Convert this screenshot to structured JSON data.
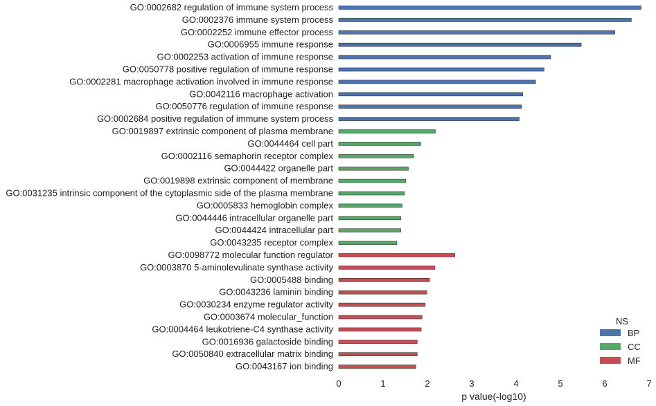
{
  "chart_data": {
    "type": "bar",
    "orientation": "horizontal",
    "xlabel": "p value(-log10)",
    "xlim": [
      0,
      7
    ],
    "xticks": [
      "0",
      "1",
      "2",
      "3",
      "4",
      "5",
      "6",
      "7"
    ],
    "grid": false,
    "legend": {
      "title": "NS",
      "placement": "bottom-right",
      "entries": [
        {
          "name": "BP",
          "color": "#4c72b0"
        },
        {
          "name": "CC",
          "color": "#55a868"
        },
        {
          "name": "MF",
          "color": "#c44e52"
        }
      ]
    },
    "categories": [
      {
        "label": "GO:0002682 regulation of immune system process",
        "value": 6.82,
        "ns": "BP"
      },
      {
        "label": "GO:0002376 immune system process",
        "value": 6.6,
        "ns": "BP"
      },
      {
        "label": "GO:0002252 immune effector process",
        "value": 6.23,
        "ns": "BP"
      },
      {
        "label": "GO:0006955 immune response",
        "value": 5.47,
        "ns": "BP"
      },
      {
        "label": "GO:0002253 activation of immune response",
        "value": 4.78,
        "ns": "BP"
      },
      {
        "label": "GO:0050778 positive regulation of immune response",
        "value": 4.63,
        "ns": "BP"
      },
      {
        "label": "GO:0002281 macrophage activation involved in immune response",
        "value": 4.44,
        "ns": "BP"
      },
      {
        "label": "GO:0042116 macrophage activation",
        "value": 4.15,
        "ns": "BP"
      },
      {
        "label": "GO:0050776 regulation of immune response",
        "value": 4.12,
        "ns": "BP"
      },
      {
        "label": "GO:0002684 positive regulation of immune system process",
        "value": 4.07,
        "ns": "BP"
      },
      {
        "label": "GO:0019897 extrinsic component of plasma membrane",
        "value": 2.18,
        "ns": "CC"
      },
      {
        "label": "GO:0044464 cell part",
        "value": 1.85,
        "ns": "CC"
      },
      {
        "label": "GO:0002116 semaphorin receptor complex",
        "value": 1.69,
        "ns": "CC"
      },
      {
        "label": "GO:0044422 organelle part",
        "value": 1.57,
        "ns": "CC"
      },
      {
        "label": "GO:0019898 extrinsic component of membrane",
        "value": 1.51,
        "ns": "CC"
      },
      {
        "label": "GO:0031235 intrinsic component of the cytoplasmic side of the plasma membrane",
        "value": 1.48,
        "ns": "CC"
      },
      {
        "label": "GO:0005833 hemoglobin complex",
        "value": 1.43,
        "ns": "CC"
      },
      {
        "label": "GO:0044446 intracellular organelle part",
        "value": 1.4,
        "ns": "CC"
      },
      {
        "label": "GO:0044424 intracellular part",
        "value": 1.4,
        "ns": "CC"
      },
      {
        "label": "GO:0043235 receptor complex",
        "value": 1.31,
        "ns": "CC"
      },
      {
        "label": "GO:0098772 molecular function regulator",
        "value": 2.62,
        "ns": "MF"
      },
      {
        "label": "GO:0003870 5-aminolevulinate synthase activity",
        "value": 2.17,
        "ns": "MF"
      },
      {
        "label": "GO:0005488 binding",
        "value": 2.05,
        "ns": "MF"
      },
      {
        "label": "GO:0043236 laminin binding",
        "value": 1.99,
        "ns": "MF"
      },
      {
        "label": "GO:0030234 enzyme regulator activity",
        "value": 1.95,
        "ns": "MF"
      },
      {
        "label": "GO:0003674 molecular_function",
        "value": 1.88,
        "ns": "MF"
      },
      {
        "label": "GO:0004464 leukotriene-C4 synthase activity",
        "value": 1.86,
        "ns": "MF"
      },
      {
        "label": "GO:0016936 galactoside binding",
        "value": 1.77,
        "ns": "MF"
      },
      {
        "label": "GO:0050840 extracellular matrix binding",
        "value": 1.77,
        "ns": "MF"
      },
      {
        "label": "GO:0043167 ion binding",
        "value": 1.74,
        "ns": "MF"
      }
    ]
  }
}
